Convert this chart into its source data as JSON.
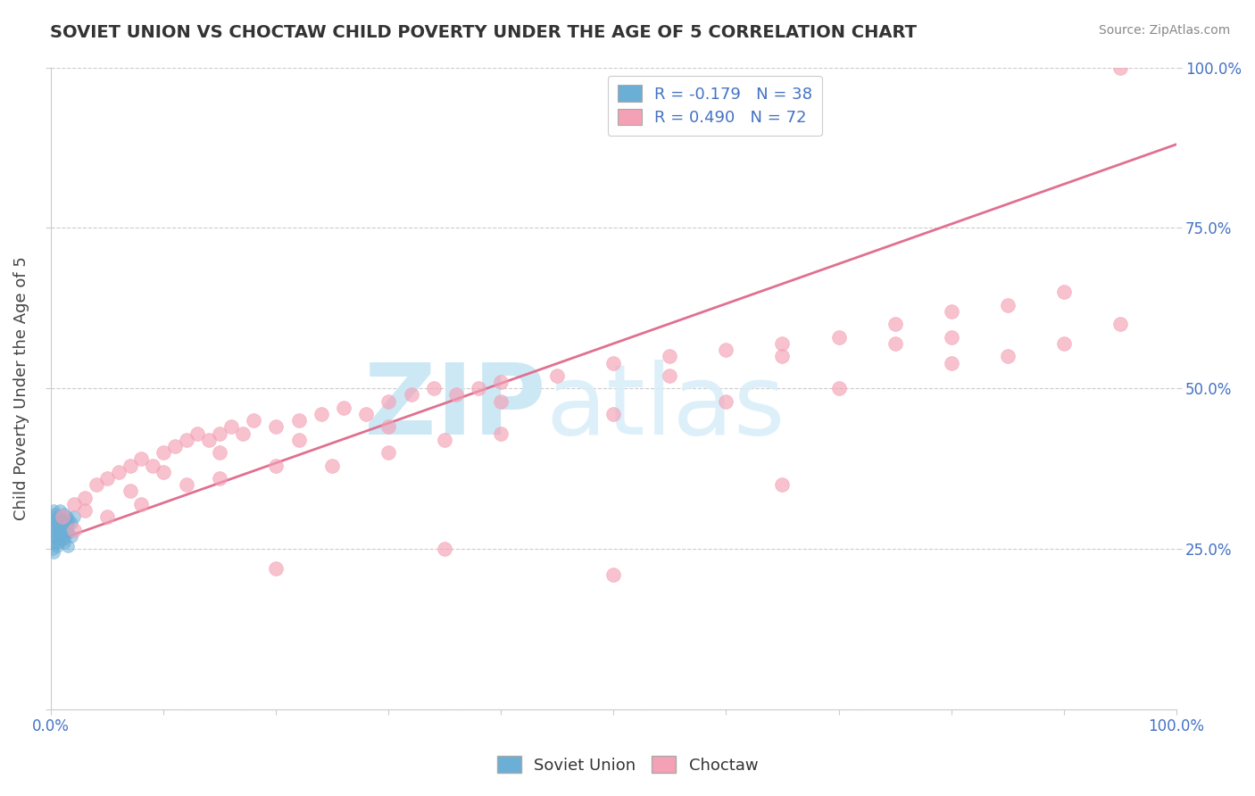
{
  "title": "SOVIET UNION VS CHOCTAW CHILD POVERTY UNDER THE AGE OF 5 CORRELATION CHART",
  "source": "Source: ZipAtlas.com",
  "ylabel": "Child Poverty Under the Age of 5",
  "xlim": [
    0.0,
    1.0
  ],
  "ylim": [
    0.0,
    1.0
  ],
  "legend_r1": "R = -0.179   N = 38",
  "legend_r2": "R = 0.490   N = 72",
  "legend_label1": "Soviet Union",
  "legend_label2": "Choctaw",
  "blue_color": "#6baed6",
  "pink_color": "#f4a0b5",
  "trend_color": "#e07090",
  "watermark_zip": "ZIP",
  "watermark_atlas": "atlas",
  "watermark_color": "#cce8f4",
  "soviet_x": [
    0.001,
    0.002,
    0.003,
    0.004,
    0.005,
    0.006,
    0.007,
    0.008,
    0.009,
    0.01,
    0.011,
    0.012,
    0.013,
    0.014,
    0.015,
    0.016,
    0.018,
    0.02,
    0.001,
    0.002,
    0.003,
    0.004,
    0.005,
    0.006,
    0.007,
    0.008,
    0.009,
    0.01,
    0.012,
    0.015,
    0.018,
    0.003,
    0.005,
    0.008,
    0.012,
    0.015,
    0.001,
    0.002
  ],
  "soviet_y": [
    0.3,
    0.31,
    0.305,
    0.295,
    0.29,
    0.285,
    0.3,
    0.31,
    0.295,
    0.285,
    0.29,
    0.305,
    0.295,
    0.3,
    0.285,
    0.295,
    0.29,
    0.3,
    0.28,
    0.285,
    0.27,
    0.275,
    0.265,
    0.26,
    0.27,
    0.275,
    0.265,
    0.27,
    0.265,
    0.275,
    0.27,
    0.26,
    0.255,
    0.265,
    0.26,
    0.255,
    0.25,
    0.245
  ],
  "choctaw_x": [
    0.01,
    0.02,
    0.03,
    0.04,
    0.05,
    0.06,
    0.07,
    0.08,
    0.09,
    0.1,
    0.11,
    0.12,
    0.13,
    0.14,
    0.15,
    0.16,
    0.17,
    0.18,
    0.2,
    0.22,
    0.24,
    0.26,
    0.28,
    0.3,
    0.32,
    0.34,
    0.36,
    0.38,
    0.4,
    0.45,
    0.5,
    0.55,
    0.6,
    0.65,
    0.7,
    0.75,
    0.8,
    0.85,
    0.9,
    0.95,
    0.02,
    0.05,
    0.08,
    0.12,
    0.15,
    0.2,
    0.25,
    0.3,
    0.35,
    0.4,
    0.5,
    0.6,
    0.7,
    0.8,
    0.9,
    0.03,
    0.07,
    0.1,
    0.15,
    0.22,
    0.3,
    0.4,
    0.55,
    0.65,
    0.8,
    0.95,
    0.85,
    0.75,
    0.2,
    0.35,
    0.5,
    0.65
  ],
  "choctaw_y": [
    0.3,
    0.32,
    0.33,
    0.35,
    0.36,
    0.37,
    0.38,
    0.39,
    0.38,
    0.4,
    0.41,
    0.42,
    0.43,
    0.42,
    0.43,
    0.44,
    0.43,
    0.45,
    0.44,
    0.45,
    0.46,
    0.47,
    0.46,
    0.48,
    0.49,
    0.5,
    0.49,
    0.5,
    0.51,
    0.52,
    0.54,
    0.55,
    0.56,
    0.57,
    0.58,
    0.6,
    0.62,
    0.63,
    0.65,
    0.6,
    0.28,
    0.3,
    0.32,
    0.35,
    0.36,
    0.38,
    0.38,
    0.4,
    0.42,
    0.43,
    0.46,
    0.48,
    0.5,
    0.54,
    0.57,
    0.31,
    0.34,
    0.37,
    0.4,
    0.42,
    0.44,
    0.48,
    0.52,
    0.55,
    0.58,
    1.0,
    0.55,
    0.57,
    0.22,
    0.25,
    0.21,
    0.35
  ],
  "trend_x0": 0.0,
  "trend_x1": 1.0,
  "trend_y0": 0.26,
  "trend_y1": 0.88
}
